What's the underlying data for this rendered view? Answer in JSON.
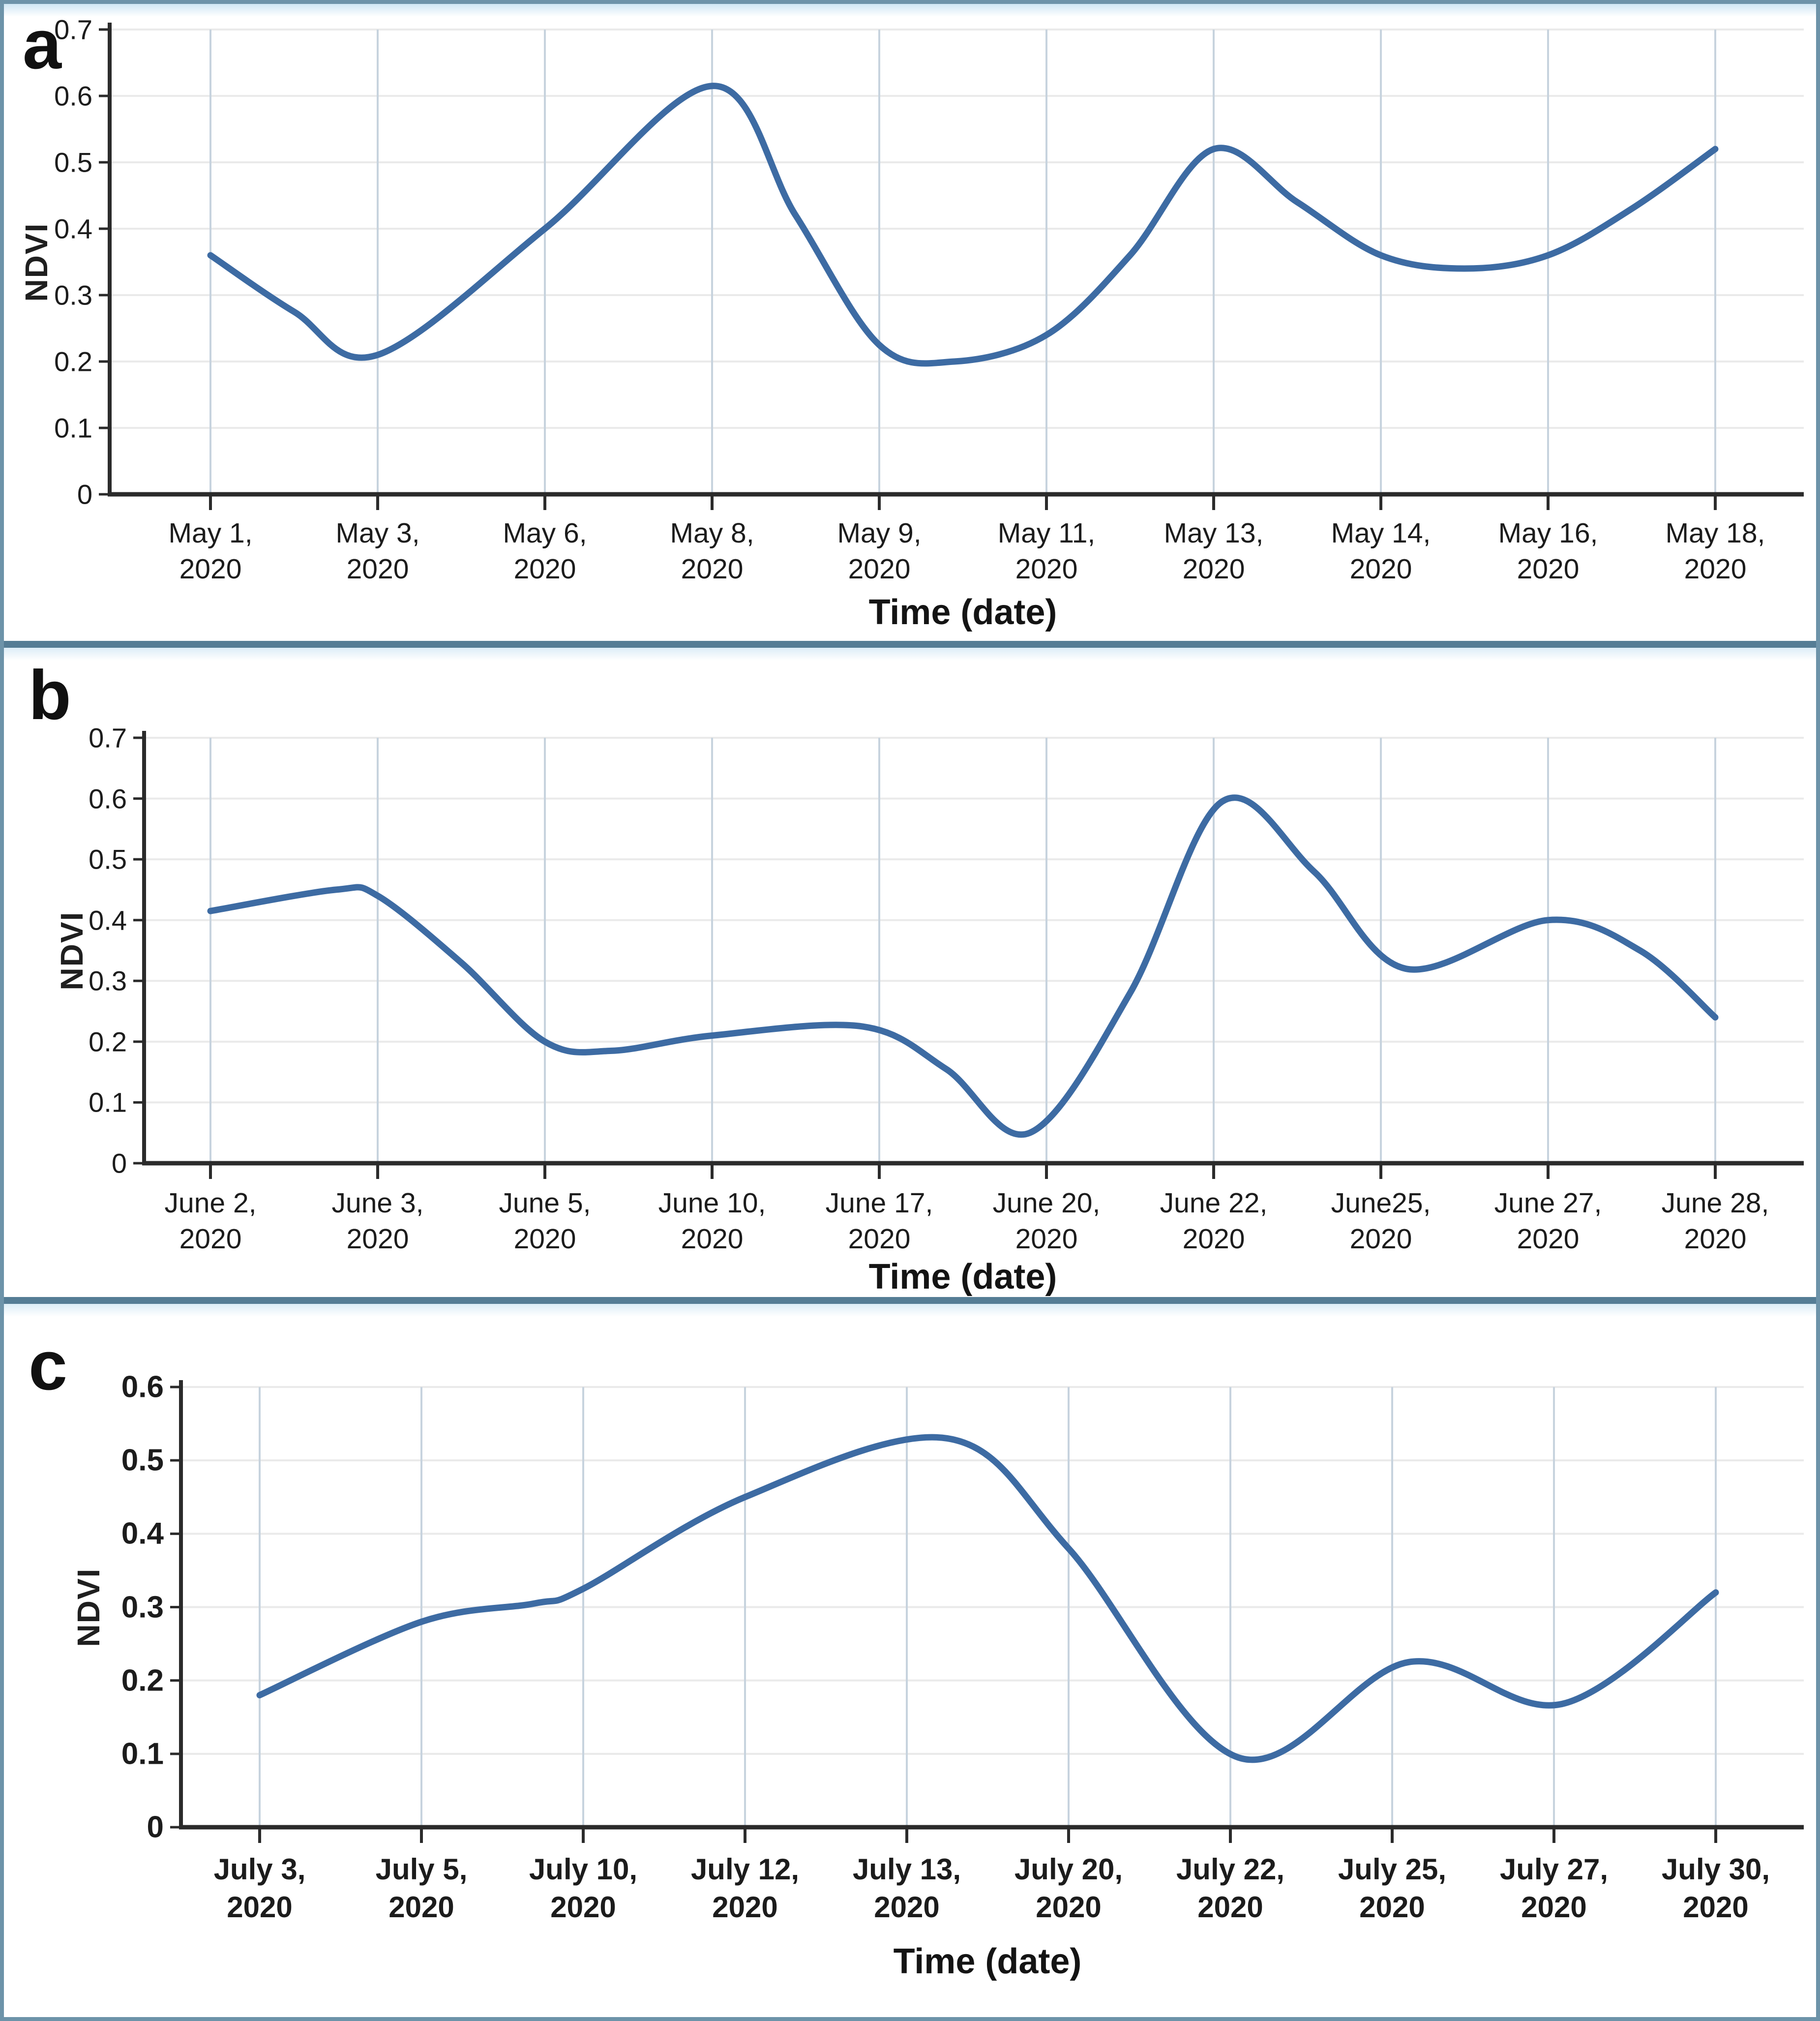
{
  "figure": {
    "description": "Three stacked smoothed NDVI time-series line charts",
    "border_color": "#6d93a9",
    "divider_color": "#557d95",
    "background": "#ffffff"
  },
  "style": {
    "line_color": "#3d6ba3",
    "vertical_grid_color": "#c7d3de",
    "horizontal_grid_color": "#eaeaea",
    "axis_color": "#2b2b2b",
    "label_color": "#1c1c1c"
  },
  "chart_data": [
    {
      "type": "line",
      "panel": "a",
      "ylabel": "NDVI",
      "xlabel": "Time (date)",
      "ylim": [
        0,
        0.7
      ],
      "y_ticks": [
        "0",
        "0.1",
        "0.2",
        "0.3",
        "0.4",
        "0.5",
        "0.6",
        "0.7"
      ],
      "grid": "on",
      "legend": "none",
      "categories": [
        "May 1, 2020",
        "May 3, 2020",
        "May 6, 2020",
        "May 8, 2020",
        "May 9, 2020",
        "May 11, 2020",
        "May 13, 2020",
        "May 14, 2020",
        "May 16, 2020",
        "May 18, 2020"
      ],
      "category_lines": [
        [
          "May 1,",
          "2020"
        ],
        [
          "May 3,",
          "2020"
        ],
        [
          "May 6,",
          "2020"
        ],
        [
          "May 8,",
          "2020"
        ],
        [
          "May 9,",
          "2020"
        ],
        [
          "May 11,",
          "2020"
        ],
        [
          "May 13,",
          "2020"
        ],
        [
          "May 14,",
          "2020"
        ],
        [
          "May 16,",
          "2020"
        ],
        [
          "May 18,",
          "2020"
        ]
      ],
      "values": [
        0.36,
        0.21,
        0.4,
        0.61,
        0.22,
        0.24,
        0.52,
        0.36,
        0.36,
        0.52
      ],
      "shape_points": [
        [
          0,
          0.36
        ],
        [
          0.5,
          0.275
        ],
        [
          1,
          0.21
        ],
        [
          2,
          0.4
        ],
        [
          3,
          0.615
        ],
        [
          3.5,
          0.42
        ],
        [
          4,
          0.225
        ],
        [
          4.45,
          0.2
        ],
        [
          5,
          0.24
        ],
        [
          5.5,
          0.36
        ],
        [
          6,
          0.52
        ],
        [
          6.5,
          0.44
        ],
        [
          7,
          0.36
        ],
        [
          7.5,
          0.34
        ],
        [
          8,
          0.36
        ],
        [
          8.5,
          0.43
        ],
        [
          9,
          0.52
        ]
      ]
    },
    {
      "type": "line",
      "panel": "b",
      "ylabel": "NDVI",
      "xlabel": "Time (date)",
      "ylim": [
        0,
        0.7
      ],
      "y_ticks": [
        "0",
        "0.1",
        "0.2",
        "0.3",
        "0.4",
        "0.5",
        "0.6",
        "0.7"
      ],
      "grid": "on",
      "legend": "none",
      "categories": [
        "June 2, 2020",
        "June 3, 2020",
        "June 5, 2020",
        "June 10, 2020",
        "June 17, 2020",
        "June 20, 2020",
        "June 22, 2020",
        "June25, 2020",
        "June 27, 2020",
        "June 28, 2020"
      ],
      "category_lines": [
        [
          "June 2,",
          "2020"
        ],
        [
          "June 3,",
          "2020"
        ],
        [
          "June 5,",
          "2020"
        ],
        [
          "June 10,",
          "2020"
        ],
        [
          "June 17,",
          "2020"
        ],
        [
          "June 20,",
          "2020"
        ],
        [
          "June 22,",
          "2020"
        ],
        [
          "June25,",
          "2020"
        ],
        [
          "June 27,",
          "2020"
        ],
        [
          "June 28,",
          "2020"
        ]
      ],
      "values": [
        0.41,
        0.44,
        0.2,
        0.21,
        0.22,
        0.07,
        0.58,
        0.33,
        0.4,
        0.24
      ],
      "shape_points": [
        [
          0,
          0.415
        ],
        [
          0.75,
          0.45
        ],
        [
          1,
          0.44
        ],
        [
          1.5,
          0.33
        ],
        [
          2,
          0.2
        ],
        [
          2.4,
          0.185
        ],
        [
          3,
          0.21
        ],
        [
          3.9,
          0.225
        ],
        [
          4.4,
          0.155
        ],
        [
          4.9,
          0.05
        ],
        [
          5.5,
          0.28
        ],
        [
          6.05,
          0.595
        ],
        [
          6.6,
          0.48
        ],
        [
          7.15,
          0.32
        ],
        [
          8,
          0.4
        ],
        [
          8.55,
          0.35
        ],
        [
          9,
          0.24
        ]
      ]
    },
    {
      "type": "line",
      "panel": "c",
      "ylabel": "NDVI",
      "xlabel": "Time (date)",
      "ylim": [
        0,
        0.6
      ],
      "y_ticks": [
        "0",
        "0.1",
        "0.2",
        "0.3",
        "0.4",
        "0.5",
        "0.6"
      ],
      "grid": "on",
      "legend": "none",
      "categories": [
        "July 3, 2020",
        "July 5, 2020",
        "July 10, 2020",
        "July 12, 2020",
        "July 13, 2020",
        "July 20, 2020",
        "July 22, 2020",
        "July 25, 2020",
        "July 27, 2020",
        "July 30, 2020"
      ],
      "category_lines": [
        [
          "July 3,",
          "2020"
        ],
        [
          "July 5,",
          "2020"
        ],
        [
          "July 10,",
          "2020"
        ],
        [
          "July 12,",
          "2020"
        ],
        [
          "July 13,",
          "2020"
        ],
        [
          "July 20,",
          "2020"
        ],
        [
          "July 22,",
          "2020"
        ],
        [
          "July 25,",
          "2020"
        ],
        [
          "July 27,",
          "2020"
        ],
        [
          "July 30,",
          "2020"
        ]
      ],
      "values": [
        0.18,
        0.28,
        0.33,
        0.45,
        0.53,
        0.38,
        0.1,
        0.22,
        0.17,
        0.32
      ],
      "shape_points": [
        [
          0,
          0.18
        ],
        [
          1,
          0.28
        ],
        [
          1.7,
          0.305
        ],
        [
          2,
          0.325
        ],
        [
          3,
          0.45
        ],
        [
          4.25,
          0.53
        ],
        [
          5,
          0.38
        ],
        [
          6.05,
          0.095
        ],
        [
          7.1,
          0.225
        ],
        [
          8.05,
          0.168
        ],
        [
          9,
          0.32
        ]
      ]
    }
  ]
}
